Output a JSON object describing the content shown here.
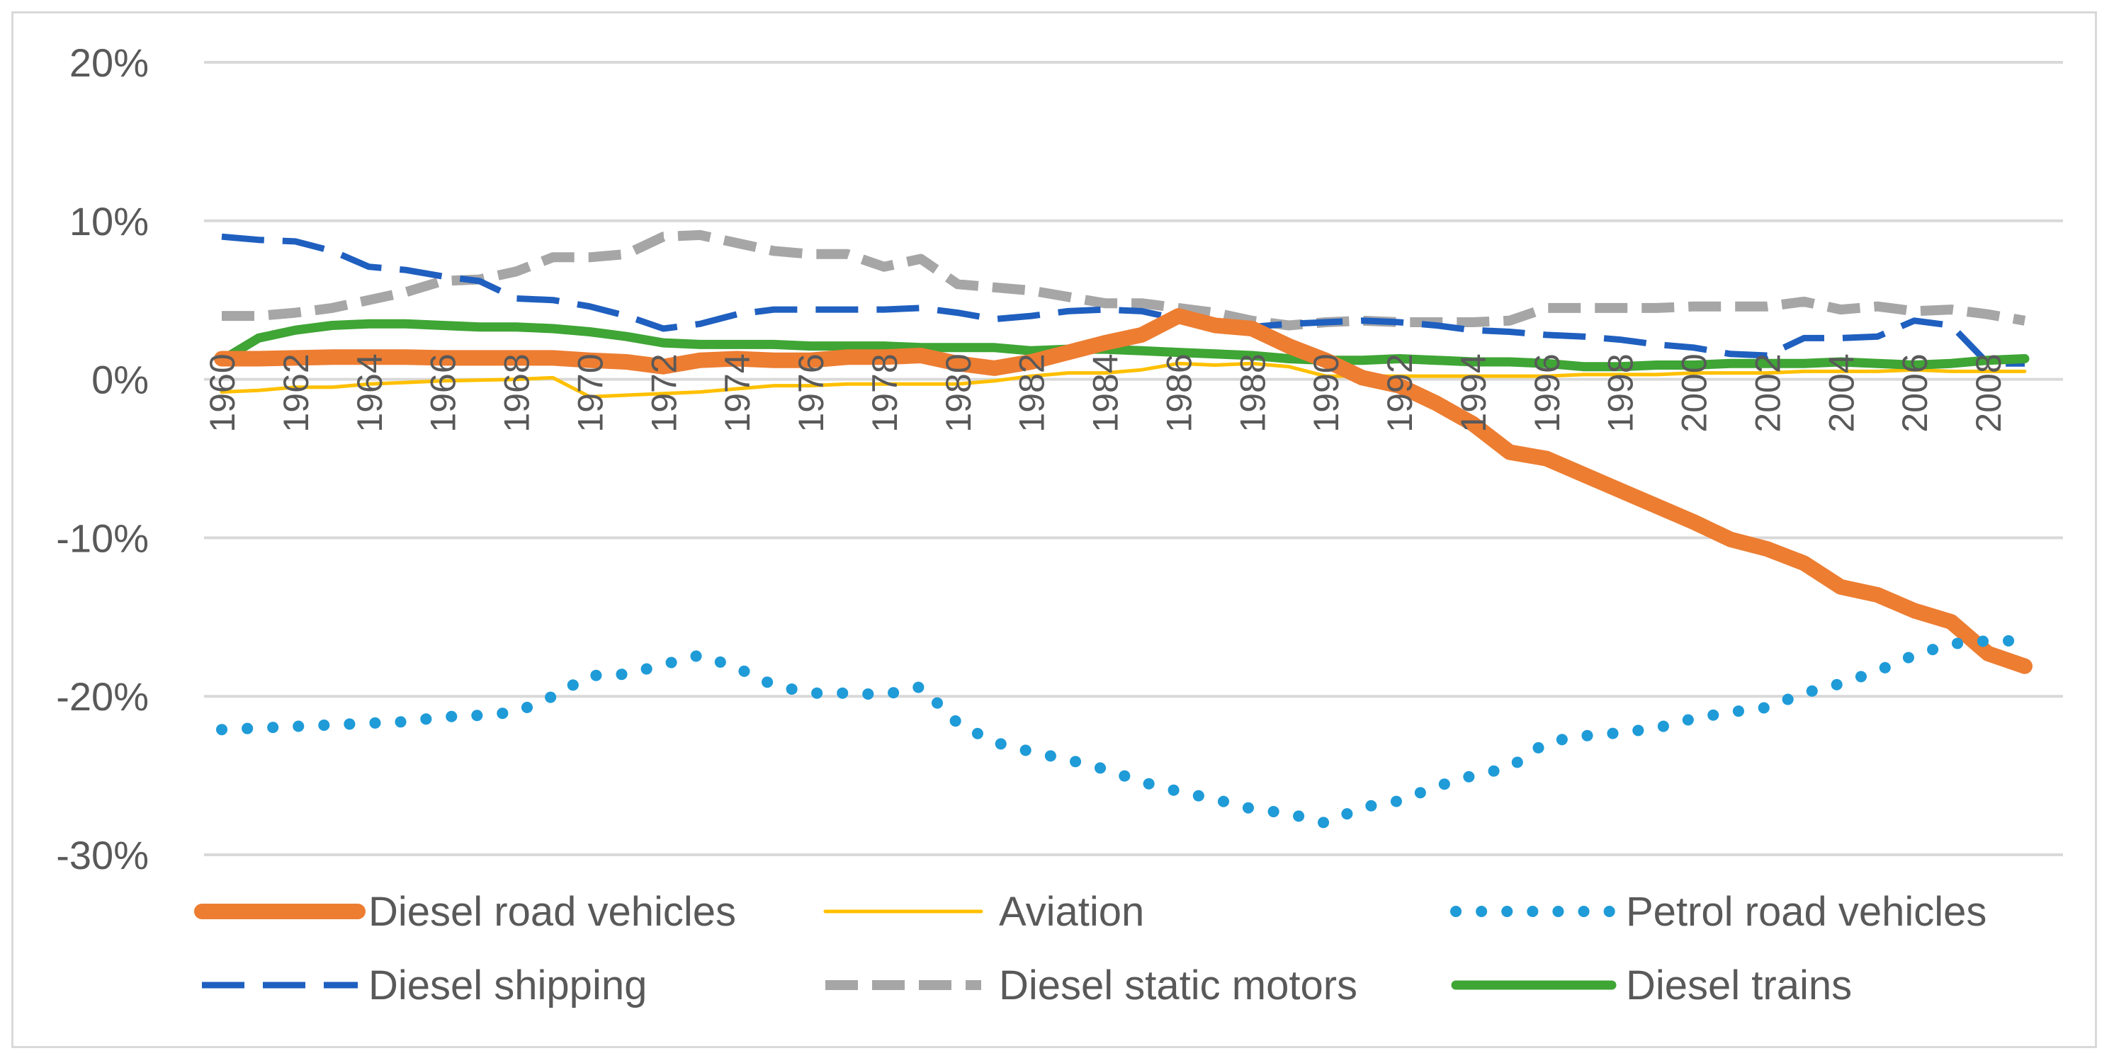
{
  "chart_data": {
    "type": "line",
    "title": "",
    "xlabel": "",
    "ylabel": "",
    "ylim": [
      -30,
      20
    ],
    "y_ticks": [
      20,
      10,
      0,
      -10,
      -20,
      -30
    ],
    "y_tick_labels": [
      "20%",
      "10%",
      "0%",
      "-10%",
      "-20%",
      "-30%"
    ],
    "x": [
      1960,
      1961,
      1962,
      1963,
      1964,
      1965,
      1966,
      1967,
      1968,
      1969,
      1970,
      1971,
      1972,
      1973,
      1974,
      1975,
      1976,
      1977,
      1978,
      1979,
      1980,
      1981,
      1982,
      1983,
      1984,
      1985,
      1986,
      1987,
      1988,
      1989,
      1990,
      1991,
      1992,
      1993,
      1994,
      1995,
      1996,
      1997,
      1998,
      1999,
      2000,
      2001,
      2002,
      2003,
      2004,
      2005,
      2006,
      2007,
      2008,
      2009
    ],
    "x_tick_labels": [
      "1960",
      "1962",
      "1964",
      "1966",
      "1968",
      "1970",
      "1972",
      "1974",
      "1976",
      "1978",
      "1980",
      "1982",
      "1984",
      "1986",
      "1988",
      "1990",
      "1992",
      "1994",
      "1996",
      "1998",
      "2000",
      "2002",
      "2004",
      "2006",
      "2008"
    ],
    "grid": true,
    "legend_position": "bottom",
    "series": [
      {
        "name": "Diesel road vehicles",
        "color": "#ed7d31",
        "style": "thick",
        "values": [
          1.3,
          1.3,
          1.35,
          1.4,
          1.4,
          1.4,
          1.35,
          1.35,
          1.35,
          1.35,
          1.2,
          1.1,
          0.8,
          1.2,
          1.3,
          1.2,
          1.2,
          1.4,
          1.4,
          1.5,
          1.0,
          0.7,
          1.1,
          1.7,
          2.3,
          2.8,
          4.0,
          3.4,
          3.2,
          2.1,
          1.2,
          0.1,
          -0.4,
          -1.5,
          -2.8,
          -4.6,
          -5.0,
          -6.0,
          -7.0,
          -8.0,
          -9.0,
          -10.1,
          -10.7,
          -11.6,
          -13.1,
          -13.6,
          -14.6,
          -15.3,
          -17.3,
          -18.1
        ]
      },
      {
        "name": "Aviation",
        "color": "#ffc000",
        "style": "thin",
        "values": [
          -0.8,
          -0.7,
          -0.5,
          -0.5,
          -0.3,
          -0.2,
          -0.1,
          -0.05,
          0.0,
          0.1,
          -1.1,
          -1.0,
          -0.9,
          -0.8,
          -0.6,
          -0.4,
          -0.4,
          -0.3,
          -0.3,
          -0.3,
          -0.3,
          -0.1,
          0.2,
          0.4,
          0.4,
          0.6,
          1.0,
          0.9,
          1.0,
          0.8,
          0.2,
          0.2,
          0.2,
          0.2,
          0.2,
          0.2,
          0.2,
          0.3,
          0.3,
          0.3,
          0.4,
          0.4,
          0.4,
          0.5,
          0.5,
          0.5,
          0.6,
          0.5,
          0.5,
          0.5
        ]
      },
      {
        "name": "Petrol road vehicles",
        "color": "#1f9bd8",
        "style": "dotted",
        "values": [
          -22.1,
          -22.0,
          -21.9,
          -21.8,
          -21.7,
          -21.6,
          -21.3,
          -21.2,
          -21.0,
          -20.0,
          -18.7,
          -18.6,
          -18.0,
          -17.4,
          -18.2,
          -19.3,
          -19.8,
          -19.8,
          -19.9,
          -19.4,
          -21.7,
          -22.9,
          -23.5,
          -24.0,
          -24.6,
          -25.4,
          -26.0,
          -26.5,
          -27.1,
          -27.4,
          -28.0,
          -27.0,
          -26.6,
          -25.7,
          -25.0,
          -24.5,
          -22.9,
          -22.5,
          -22.3,
          -22.0,
          -21.4,
          -21.0,
          -20.7,
          -19.8,
          -19.2,
          -18.4,
          -17.4,
          -16.7,
          -16.5,
          -16.5
        ]
      },
      {
        "name": "Diesel shipping",
        "color": "#1f5fbf",
        "style": "dashed",
        "values": [
          9.0,
          8.8,
          8.7,
          8.1,
          7.1,
          6.9,
          6.5,
          6.2,
          5.1,
          5.0,
          4.6,
          4.0,
          3.2,
          3.5,
          4.1,
          4.4,
          4.4,
          4.4,
          4.4,
          4.5,
          4.2,
          3.8,
          4.0,
          4.3,
          4.4,
          4.3,
          3.8,
          3.4,
          3.3,
          3.5,
          3.6,
          3.7,
          3.6,
          3.4,
          3.1,
          3.0,
          2.8,
          2.7,
          2.5,
          2.2,
          2.0,
          1.6,
          1.5,
          2.6,
          2.6,
          2.7,
          3.7,
          3.4,
          1.0,
          1.0
        ]
      },
      {
        "name": "Diesel static motors",
        "color": "#a6a6a6",
        "style": "dashed",
        "values": [
          4.0,
          4.0,
          4.2,
          4.5,
          5.0,
          5.5,
          6.2,
          6.3,
          6.8,
          7.7,
          7.7,
          7.9,
          9.0,
          9.1,
          8.6,
          8.1,
          7.9,
          7.9,
          7.1,
          7.6,
          6.0,
          5.8,
          5.6,
          5.2,
          4.8,
          4.8,
          4.5,
          4.2,
          3.7,
          3.4,
          3.6,
          3.7,
          3.6,
          3.6,
          3.6,
          3.7,
          4.5,
          4.5,
          4.5,
          4.5,
          4.6,
          4.6,
          4.6,
          4.9,
          4.4,
          4.6,
          4.3,
          4.4,
          4.1,
          3.7
        ]
      },
      {
        "name": "Diesel trains",
        "color": "#3fa535",
        "style": "solid",
        "values": [
          1.2,
          2.6,
          3.1,
          3.4,
          3.5,
          3.5,
          3.4,
          3.3,
          3.3,
          3.2,
          3.0,
          2.7,
          2.3,
          2.2,
          2.2,
          2.2,
          2.1,
          2.1,
          2.1,
          2.0,
          2.0,
          2.0,
          1.8,
          1.9,
          1.9,
          1.8,
          1.7,
          1.6,
          1.5,
          1.3,
          1.2,
          1.2,
          1.3,
          1.2,
          1.1,
          1.1,
          1.0,
          0.8,
          0.8,
          0.9,
          0.9,
          1.0,
          1.0,
          1.0,
          1.1,
          1.0,
          0.9,
          1.0,
          1.2,
          1.3
        ]
      }
    ]
  }
}
